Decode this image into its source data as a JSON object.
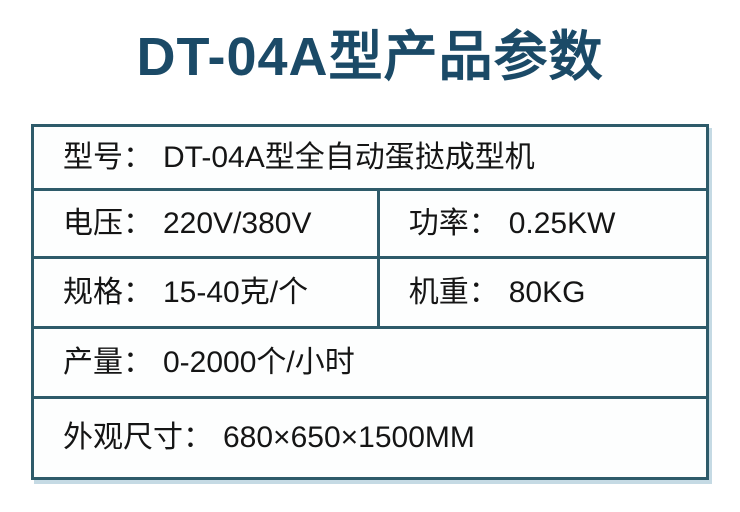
{
  "page": {
    "title": "DT-04A型产品参数"
  },
  "table": {
    "separator": "：",
    "rows": [
      {
        "layout": "full",
        "cells": [
          {
            "label": "型号",
            "value": "DT-04A型全自动蛋挞成型机"
          }
        ]
      },
      {
        "layout": "split",
        "cells": [
          {
            "label": "电压",
            "value": "220V/380V"
          },
          {
            "label": "功率",
            "value": "0.25KW"
          }
        ]
      },
      {
        "layout": "split",
        "cells": [
          {
            "label": "规格",
            "value": "15-40克/个"
          },
          {
            "label": "机重",
            "value": "80KG"
          }
        ]
      },
      {
        "layout": "full",
        "cells": [
          {
            "label": "产量",
            "value": "0-2000个/小时"
          }
        ]
      },
      {
        "layout": "full",
        "cells": [
          {
            "label": "外观尺寸",
            "value": "680×650×1500MM"
          }
        ]
      }
    ]
  },
  "colors": {
    "title": "#1b4a67",
    "table_border": "#2e5b6a",
    "text": "#151515",
    "table_shadow": "#c5dae4",
    "background": "#ffffff"
  }
}
